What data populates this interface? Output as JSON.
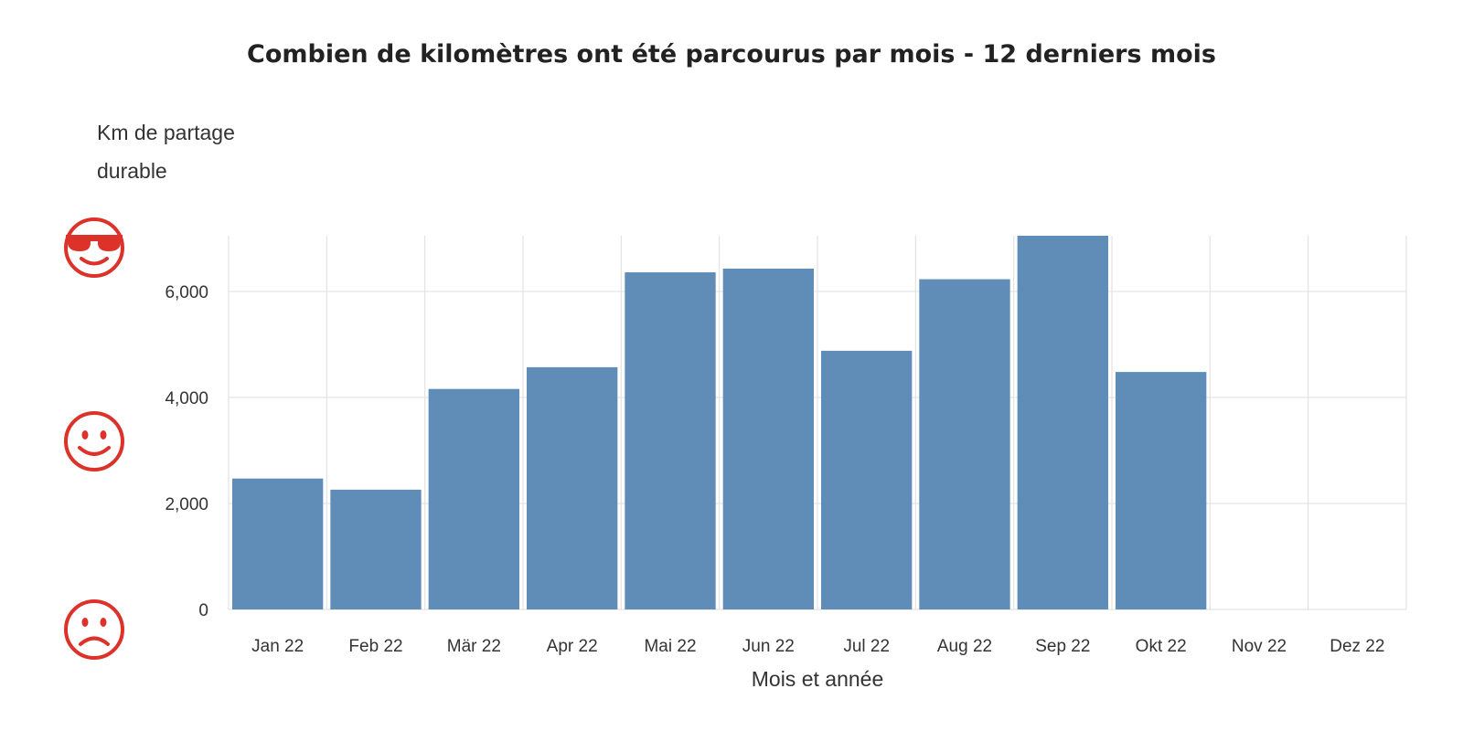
{
  "chart_data": {
    "type": "bar",
    "title": "Combien de kilomètres ont été parcourus par mois - 12 derniers mois",
    "ylabel_lines": [
      "Km de partage",
      "durable"
    ],
    "xlabel": "Mois et année",
    "categories": [
      "Jan 22",
      "Feb 22",
      "Mär 22",
      "Apr 22",
      "Mai 22",
      "Jun 22",
      "Jul 22",
      "Aug 22",
      "Sep 22",
      "Okt 22",
      "Nov 22",
      "Dez 22"
    ],
    "values": [
      2470,
      2260,
      4160,
      4570,
      6360,
      6430,
      4880,
      6230,
      7050,
      4480,
      null,
      null
    ],
    "yticks": [
      0,
      2000,
      4000,
      6000
    ],
    "ytick_labels": [
      "0",
      "2,000",
      "4,000",
      "6,000"
    ],
    "ylim": [
      0,
      7050
    ],
    "grid": true,
    "bar_color": "#5f8db8",
    "grid_color": "#e3e3e3"
  },
  "faces": {
    "top": "sunglasses-face-icon",
    "middle": "smiling-face-icon",
    "bottom": "frowning-face-icon",
    "color": "#dc3229"
  }
}
